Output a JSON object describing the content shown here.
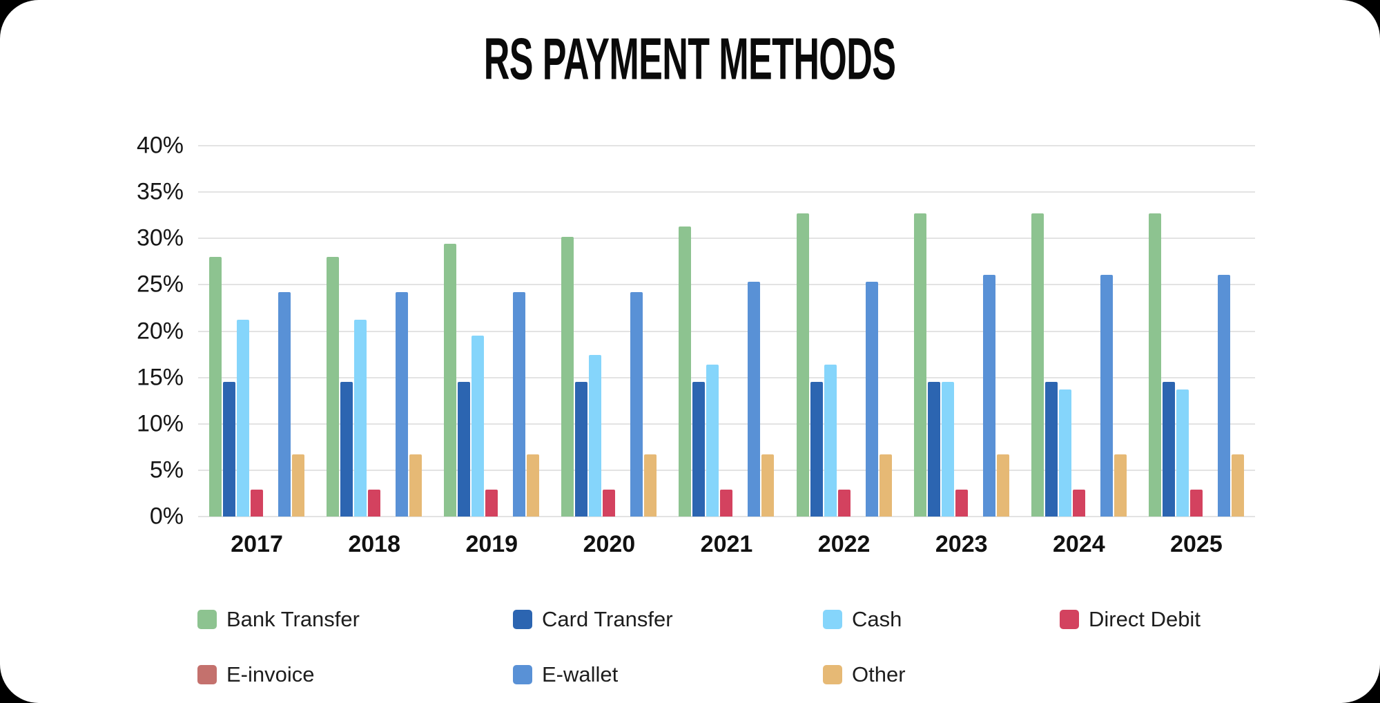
{
  "page": {
    "outer_background": "#000000",
    "card_background": "#FFFFFF"
  },
  "title": "RS PAYMENT METHODS",
  "chart_data": {
    "type": "bar",
    "title": "RS PAYMENT METHODS",
    "categories": [
      "2017",
      "2018",
      "2019",
      "2020",
      "2021",
      "2022",
      "2023",
      "2024",
      "2025"
    ],
    "series": [
      {
        "name": "Bank Transfer",
        "color": "#8DC390",
        "values": [
          28.0,
          28.0,
          29.4,
          30.2,
          31.3,
          32.7,
          32.7,
          32.7,
          32.7
        ]
      },
      {
        "name": "Card Transfer",
        "color": "#2C65B1",
        "values": [
          14.5,
          14.5,
          14.5,
          14.5,
          14.5,
          14.5,
          14.5,
          14.5,
          14.5
        ]
      },
      {
        "name": "Cash",
        "color": "#85D5FB",
        "values": [
          21.2,
          21.2,
          19.5,
          17.4,
          16.4,
          16.4,
          14.5,
          13.7,
          13.7
        ]
      },
      {
        "name": "Direct Debit",
        "color": "#D3425F",
        "values": [
          2.9,
          2.9,
          2.9,
          2.9,
          2.9,
          2.9,
          2.9,
          2.9,
          2.9
        ]
      },
      {
        "name": "E-invoice",
        "color": "#C4716D",
        "values": [
          0,
          0,
          0,
          0,
          0,
          0,
          0,
          0,
          0
        ]
      },
      {
        "name": "E-wallet",
        "color": "#5991D6",
        "values": [
          24.2,
          24.2,
          24.2,
          24.2,
          25.3,
          25.3,
          26.1,
          26.1,
          26.1
        ]
      },
      {
        "name": "Other",
        "color": "#E6B975",
        "values": [
          6.7,
          6.7,
          6.7,
          6.7,
          6.7,
          6.7,
          6.7,
          6.7,
          6.7
        ]
      }
    ],
    "xlabel": "",
    "ylabel": "",
    "ylim": [
      0,
      40
    ],
    "y_tick_step": 5,
    "y_tick_labels": [
      "0%",
      "5%",
      "10%",
      "15%",
      "20%",
      "25%",
      "30%",
      "35%",
      "40%"
    ],
    "grid": true,
    "legend_position": "bottom",
    "legend_entries": [
      "Bank Transfer",
      "Card Transfer",
      "Cash",
      "Direct Debit",
      "E-invoice",
      "E-wallet",
      "Other"
    ],
    "colors": {
      "grid_line": "#E3E3E3",
      "axis_text": "#161616",
      "legend_text": "#1D1D1D",
      "title_text": "#0A0A0A"
    }
  }
}
